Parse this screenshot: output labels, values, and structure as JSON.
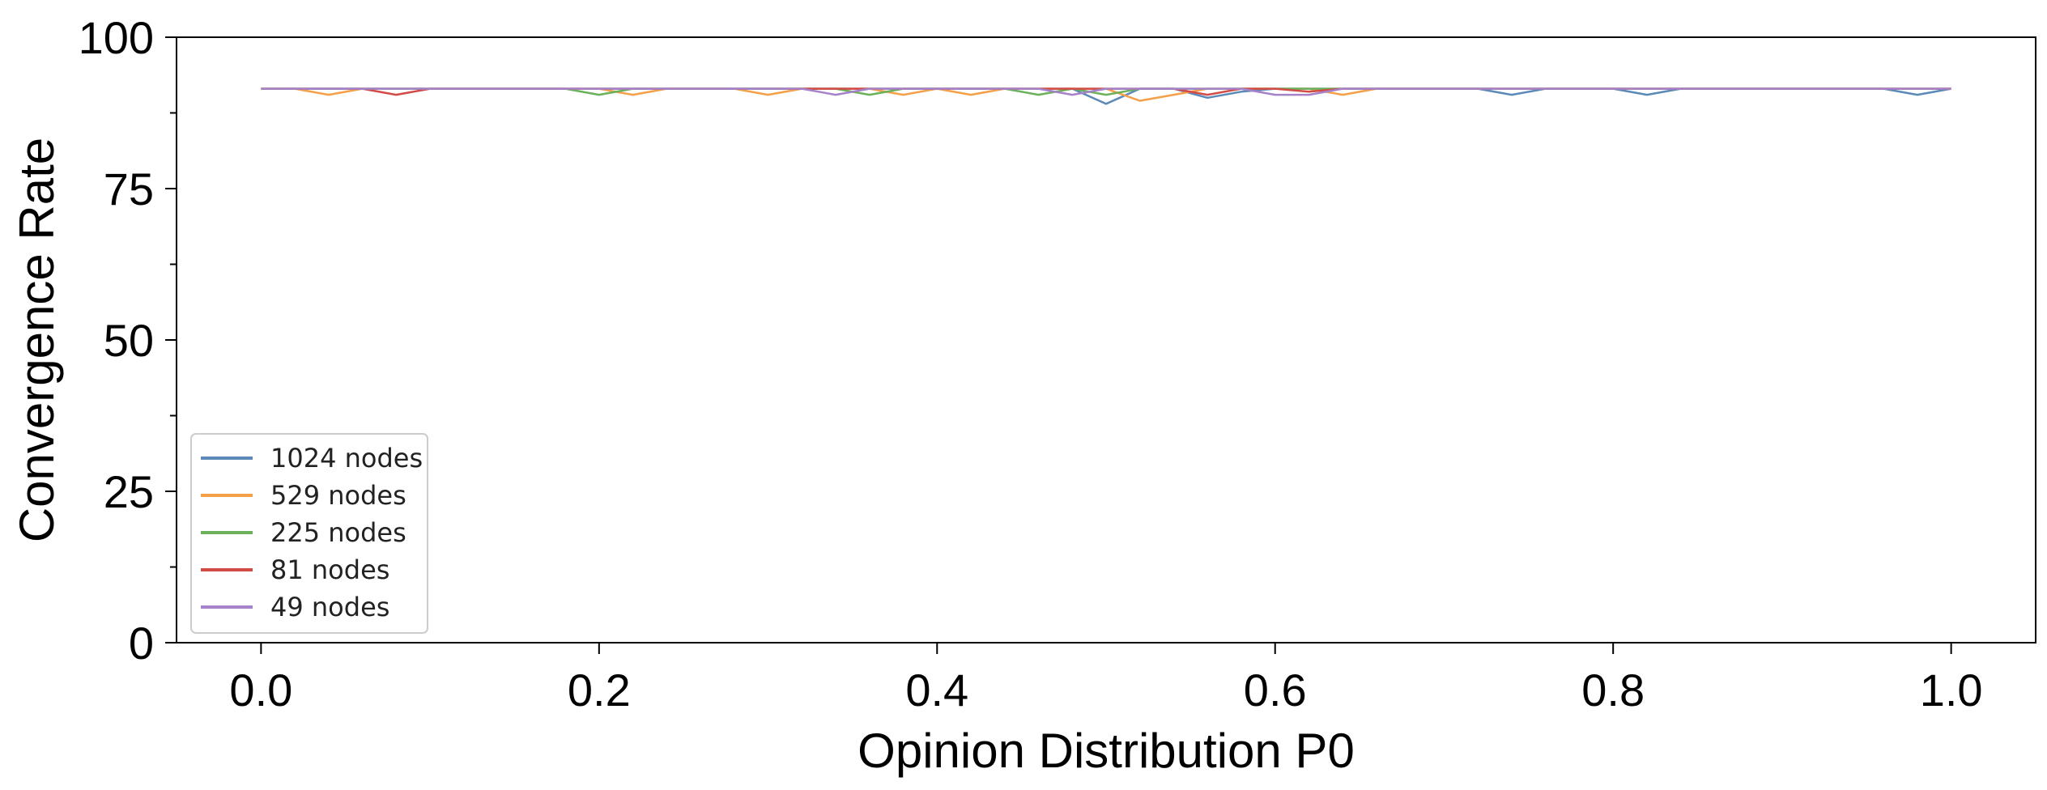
{
  "chart_data": {
    "type": "line",
    "title": "",
    "xlabel": "Opinion Distribution P0",
    "ylabel": "Convergence Rate",
    "xlim": [
      -0.05,
      1.05
    ],
    "ylim": [
      0,
      100
    ],
    "xticks": [
      0.0,
      0.2,
      0.4,
      0.6,
      0.8,
      1.0
    ],
    "xtick_labels": [
      "0.0",
      "0.2",
      "0.4",
      "0.6",
      "0.8",
      "1.0"
    ],
    "yticks": [
      0,
      25,
      50,
      75,
      100
    ],
    "ytick_labels": [
      "0",
      "25",
      "50",
      "75",
      "100"
    ],
    "grid": false,
    "legend_position": "lower-left",
    "x": [
      0.0,
      0.02,
      0.04,
      0.06,
      0.08,
      0.1,
      0.12,
      0.14,
      0.16,
      0.18,
      0.2,
      0.22,
      0.24,
      0.26,
      0.28,
      0.3,
      0.32,
      0.34,
      0.36,
      0.38,
      0.4,
      0.42,
      0.44,
      0.46,
      0.48,
      0.5,
      0.52,
      0.54,
      0.56,
      0.58,
      0.6,
      0.62,
      0.64,
      0.66,
      0.68,
      0.7,
      0.72,
      0.74,
      0.76,
      0.78,
      0.8,
      0.82,
      0.84,
      0.86,
      0.88,
      0.9,
      0.92,
      0.94,
      0.96,
      0.98,
      1.0
    ],
    "series": [
      {
        "name": "1024 nodes",
        "color": "#5b8ab8",
        "values": [
          91.5,
          91.5,
          91.5,
          91.5,
          91.5,
          91.5,
          91.5,
          91.5,
          91.5,
          91.5,
          91.5,
          91.5,
          91.5,
          91.5,
          91.5,
          91.5,
          91.5,
          91.5,
          91.5,
          91.5,
          91.5,
          91.5,
          91.5,
          91.5,
          91.5,
          89,
          91.5,
          91.5,
          90,
          91,
          91.5,
          91.5,
          91.5,
          91.5,
          91.5,
          91.5,
          91.5,
          90.5,
          91.5,
          91.5,
          91.5,
          90.5,
          91.5,
          91.5,
          91.5,
          91.5,
          91.5,
          91.5,
          91.5,
          90.5,
          91.5
        ]
      },
      {
        "name": "529 nodes",
        "color": "#f5a049",
        "values": [
          91.5,
          91.5,
          90.5,
          91.5,
          91.5,
          91.5,
          91.5,
          91.5,
          91.5,
          91.5,
          91.5,
          90.5,
          91.5,
          91.5,
          91.5,
          90.5,
          91.5,
          91.5,
          91.5,
          90.5,
          91.5,
          90.5,
          91.5,
          91.5,
          91.5,
          91.5,
          89.5,
          90.5,
          91.5,
          91.5,
          91.5,
          91.5,
          90.5,
          91.5,
          91.5,
          91.5,
          91.5,
          91.5,
          91.5,
          91.5,
          91.5,
          91.5,
          91.5,
          91.5,
          91.5,
          91.5,
          91.5,
          91.5,
          91.5,
          91.5,
          91.5
        ]
      },
      {
        "name": "225 nodes",
        "color": "#6ab15a",
        "values": [
          91.5,
          91.5,
          91.5,
          91.5,
          91.5,
          91.5,
          91.5,
          91.5,
          91.5,
          91.5,
          90.5,
          91.5,
          91.5,
          91.5,
          91.5,
          91.5,
          91.5,
          91.5,
          90.5,
          91.5,
          91.5,
          91.5,
          91.5,
          90.5,
          91.5,
          90.5,
          91.5,
          91.5,
          91.5,
          91.5,
          91.5,
          91.5,
          91.5,
          91.5,
          91.5,
          91.5,
          91.5,
          91.5,
          91.5,
          91.5,
          91.5,
          91.5,
          91.5,
          91.5,
          91.5,
          91.5,
          91.5,
          91.5,
          91.5,
          91.5,
          91.5
        ]
      },
      {
        "name": "81 nodes",
        "color": "#d24b47",
        "values": [
          91.5,
          91.5,
          91.5,
          91.5,
          90.5,
          91.5,
          91.5,
          91.5,
          91.5,
          91.5,
          91.5,
          91.5,
          91.5,
          91.5,
          91.5,
          91.5,
          91.5,
          91.5,
          91.5,
          91.5,
          91.5,
          91.5,
          91.5,
          91.5,
          91.5,
          91.5,
          91.5,
          91.5,
          90.5,
          91.5,
          91.5,
          91,
          91.5,
          91.5,
          91.5,
          91.5,
          91.5,
          91.5,
          91.5,
          91.5,
          91.5,
          91.5,
          91.5,
          91.5,
          91.5,
          91.5,
          91.5,
          91.5,
          91.5,
          91.5,
          91.5
        ]
      },
      {
        "name": "49 nodes",
        "color": "#a582c9",
        "values": [
          91.5,
          91.5,
          91.5,
          91.5,
          91.5,
          91.5,
          91.5,
          91.5,
          91.5,
          91.5,
          91.5,
          91.5,
          91.5,
          91.5,
          91.5,
          91.5,
          91.5,
          90.5,
          91.5,
          91.5,
          91.5,
          91.5,
          91.5,
          91.5,
          90.5,
          91.5,
          91.5,
          91.5,
          91.5,
          91.5,
          90.5,
          90.5,
          91.5,
          91.5,
          91.5,
          91.5,
          91.5,
          91.5,
          91.5,
          91.5,
          91.5,
          91.5,
          91.5,
          91.5,
          91.5,
          91.5,
          91.5,
          91.5,
          91.5,
          91.5,
          91.5
        ]
      }
    ]
  }
}
